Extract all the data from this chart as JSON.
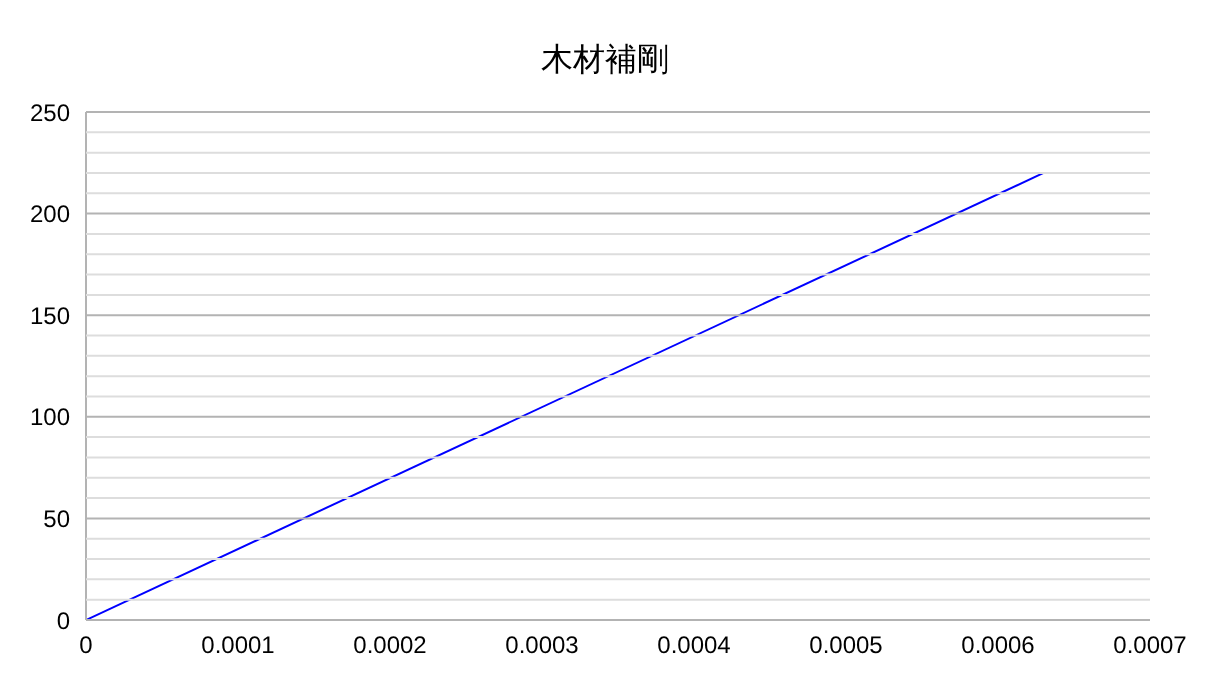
{
  "chart_data": {
    "type": "line",
    "title": "木材補剛",
    "x": [
      0,
      0.00063
    ],
    "series": [
      {
        "color": "#0000ff",
        "values": [
          0,
          220
        ]
      }
    ],
    "xlim": [
      0,
      0.0007
    ],
    "xticks": [
      0,
      0.0001,
      0.0002,
      0.0003,
      0.0004,
      0.0005,
      0.0006,
      0.0007
    ],
    "ylim": [
      0,
      250
    ],
    "yticks": [
      0,
      {
        "value": 10,
        "label": null
      },
      {
        "value": 20,
        "label": null
      },
      {
        "value": 30,
        "label": null
      },
      {
        "value": 40,
        "label": null
      },
      50,
      {
        "value": 60,
        "label": null
      },
      {
        "value": 70,
        "label": null
      },
      {
        "value": 80,
        "label": null
      },
      {
        "value": 90,
        "label": null
      },
      100,
      {
        "value": 110,
        "label": null
      },
      {
        "value": 120,
        "label": null
      },
      {
        "value": 130,
        "label": null
      },
      {
        "value": 140,
        "label": null
      },
      150,
      {
        "value": 160,
        "label": null
      },
      {
        "value": 170,
        "label": null
      },
      {
        "value": 180,
        "label": null
      },
      {
        "value": 190,
        "label": null
      },
      200,
      {
        "value": 210,
        "label": null
      },
      {
        "value": 220,
        "label": null
      },
      {
        "value": 230,
        "label": null
      },
      {
        "value": 240,
        "label": null
      },
      250
    ],
    "grid": "y",
    "marker": "none",
    "line_style": "solid",
    "legend": false
  }
}
